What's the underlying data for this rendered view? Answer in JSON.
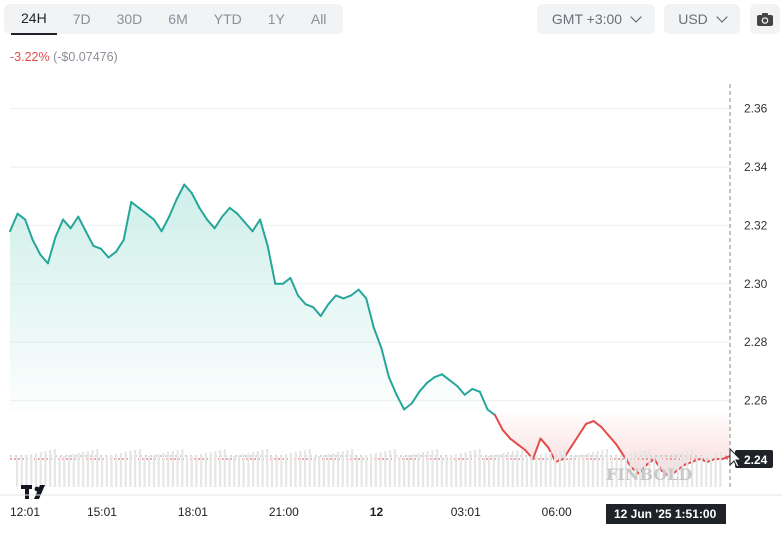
{
  "toolbar": {
    "ranges": [
      "24H",
      "7D",
      "30D",
      "6M",
      "YTD",
      "1Y",
      "All"
    ],
    "active_range": "24H",
    "timezone": "GMT +3:00",
    "currency": "USD"
  },
  "change": {
    "percent": "-3.22%",
    "absolute": "(-$0.07476)"
  },
  "crosshair": {
    "price_label": "2.24",
    "time_label": "12 Jun '25 1:51:00"
  },
  "watermark": "FINBOLD",
  "colors": {
    "up": "#26a69a",
    "down": "#e24b4b",
    "fill_down": "#f7c8c8",
    "fill_up": "#c9ede7"
  },
  "chart_data": {
    "type": "area",
    "ylim": [
      2.24,
      2.365
    ],
    "y_ticks": [
      2.26,
      2.28,
      2.3,
      2.32,
      2.34,
      2.36
    ],
    "y_tick_labels": [
      "2.26",
      "2.28",
      "2.30",
      "2.32",
      "2.34",
      "2.36"
    ],
    "x_ticks": [
      0,
      3,
      6,
      9,
      12,
      15,
      18,
      21
    ],
    "x_tick_labels": [
      "12:01",
      "15:01",
      "18:01",
      "21:00",
      "12",
      "03:01",
      "06:00",
      ""
    ],
    "baseline": 2.256,
    "last_value": 2.24,
    "x": [
      0,
      0.25,
      0.5,
      0.75,
      1,
      1.25,
      1.5,
      1.75,
      2,
      2.25,
      2.5,
      2.75,
      3,
      3.25,
      3.5,
      3.75,
      4,
      4.25,
      4.5,
      4.75,
      5,
      5.25,
      5.5,
      5.75,
      6,
      6.25,
      6.5,
      6.75,
      7,
      7.25,
      7.5,
      7.75,
      8,
      8.25,
      8.5,
      8.75,
      9,
      9.25,
      9.5,
      9.75,
      10,
      10.25,
      10.5,
      10.75,
      11,
      11.25,
      11.5,
      11.75,
      12,
      12.25,
      12.5,
      12.75,
      13,
      13.25,
      13.5,
      13.75,
      14,
      14.25,
      14.5,
      14.75,
      15,
      15.25,
      15.5,
      15.75,
      16,
      16.25,
      16.5,
      16.75,
      17,
      17.25,
      17.5,
      17.75,
      18,
      18.25,
      18.5,
      18.75,
      19,
      19.25,
      19.5,
      19.75,
      20,
      20.25,
      20.5,
      20.75,
      21,
      21.25,
      21.5,
      21.75,
      22,
      22.25,
      22.5,
      22.75,
      23,
      23.25,
      23.5,
      23.75
    ],
    "values": [
      2.318,
      2.324,
      2.322,
      2.315,
      2.31,
      2.307,
      2.316,
      2.322,
      2.319,
      2.323,
      2.318,
      2.313,
      2.312,
      2.309,
      2.311,
      2.315,
      2.328,
      2.326,
      2.324,
      2.322,
      2.318,
      2.323,
      2.329,
      2.334,
      2.331,
      2.326,
      2.322,
      2.319,
      2.323,
      2.326,
      2.324,
      2.321,
      2.318,
      2.322,
      2.313,
      2.3,
      2.3,
      2.302,
      2.296,
      2.293,
      2.292,
      2.289,
      2.293,
      2.296,
      2.295,
      2.296,
      2.298,
      2.295,
      2.285,
      2.278,
      2.268,
      2.262,
      2.257,
      2.259,
      2.263,
      2.266,
      2.268,
      2.269,
      2.267,
      2.265,
      2.262,
      2.264,
      2.263,
      2.257,
      2.255,
      2.25,
      2.247,
      2.245,
      2.243,
      2.24,
      2.247,
      2.244,
      2.239,
      2.24,
      2.244,
      2.248,
      2.252,
      2.253,
      2.251,
      2.248,
      2.245,
      2.241,
      2.237,
      2.235,
      2.238,
      2.24,
      2.236,
      2.234,
      2.236,
      2.238,
      2.239,
      2.24,
      2.239,
      2.24,
      2.24,
      2.241
    ]
  }
}
